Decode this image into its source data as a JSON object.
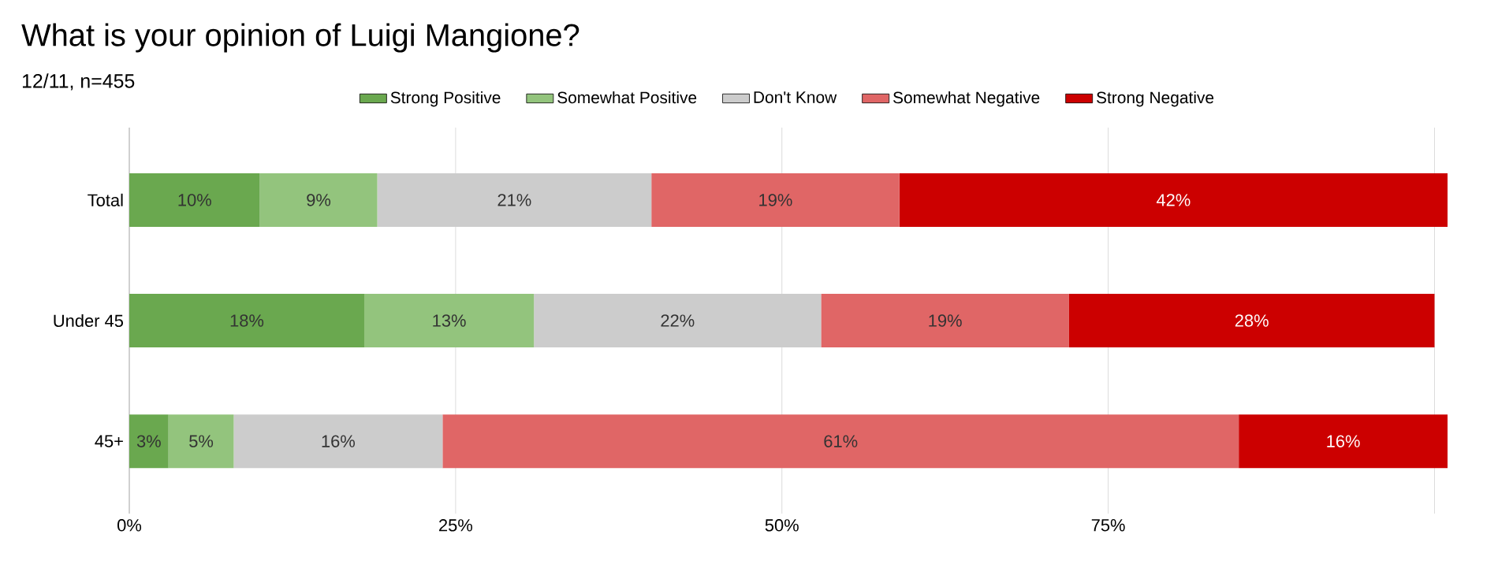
{
  "chart_data": {
    "type": "bar",
    "orientation": "horizontal",
    "stacked": true,
    "title": "What is your opinion of Luigi Mangione?",
    "subtitle": "12/11, n=455",
    "categories": [
      "Total",
      "Under 45",
      "45+"
    ],
    "series": [
      {
        "name": "Strong Positive",
        "color": "#6aa84f",
        "values": [
          10,
          18,
          3
        ],
        "value_labels": [
          "10%",
          "18%",
          "3%"
        ]
      },
      {
        "name": "Somewhat Positive",
        "color": "#93c47d",
        "values": [
          9,
          13,
          5
        ],
        "value_labels": [
          "9%",
          "13%",
          "5%"
        ]
      },
      {
        "name": "Don't Know",
        "color": "#cccccc",
        "values": [
          21,
          22,
          16
        ],
        "value_labels": [
          "21%",
          "22%",
          "16%"
        ]
      },
      {
        "name": "Somewhat Negative",
        "color": "#e06666",
        "values": [
          19,
          19,
          61
        ],
        "value_labels": [
          "19%",
          "19%",
          "61%"
        ]
      },
      {
        "name": "Strong Negative",
        "color": "#cc0000",
        "values": [
          42,
          28,
          16
        ],
        "value_labels": [
          "42%",
          "28%",
          "16%"
        ]
      }
    ],
    "xlim": [
      0,
      101
    ],
    "xticks": [
      {
        "value": 0,
        "label": "0%"
      },
      {
        "value": 25,
        "label": "25%"
      },
      {
        "value": 50,
        "label": "50%"
      },
      {
        "value": 75,
        "label": "75%"
      },
      {
        "value": 100,
        "label": null
      }
    ],
    "grid": "x",
    "legend": "top"
  }
}
